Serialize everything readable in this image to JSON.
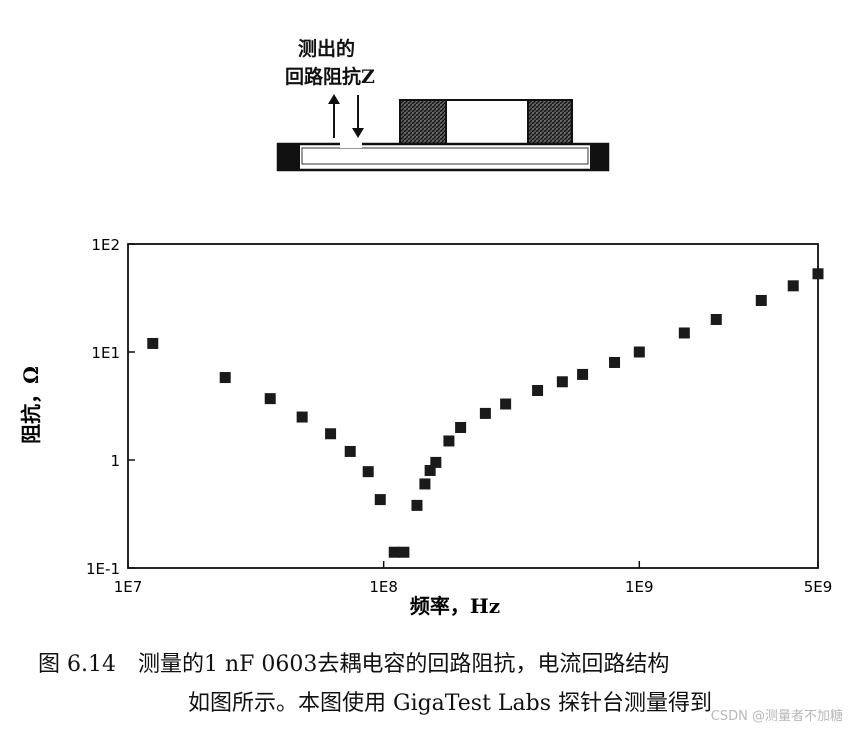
{
  "diagram": {
    "label_line1": "测出的",
    "label_line2": "回路阻抗Z"
  },
  "chart_data": {
    "type": "scatter",
    "title": "",
    "xlabel": "频率，Hz",
    "ylabel": "阻抗，Ω",
    "x_scale": "log",
    "y_scale": "log",
    "xlim": [
      10000000.0,
      5000000000.0
    ],
    "ylim": [
      0.1,
      100
    ],
    "x_ticks": [
      {
        "value": 10000000.0,
        "label": "1E7"
      },
      {
        "value": 100000000.0,
        "label": "1E8"
      },
      {
        "value": 1000000000.0,
        "label": "1E9"
      },
      {
        "value": 5000000000.0,
        "label": "5E9"
      }
    ],
    "y_ticks": [
      {
        "value": 0.1,
        "label": "1E-1"
      },
      {
        "value": 1,
        "label": "1"
      },
      {
        "value": 10,
        "label": "1E1"
      },
      {
        "value": 100,
        "label": "1E2"
      }
    ],
    "grid": false,
    "series": [
      {
        "x": [
          12500000.0,
          24000000.0,
          36000000.0,
          48000000.0,
          62000000.0,
          74000000.0,
          87000000.0,
          97000000.0,
          110000000.0,
          120000000.0,
          135000000.0,
          145000000.0,
          152000000.0,
          160000000.0,
          180000000.0,
          200000000.0,
          250000000.0,
          300000000.0,
          400000000.0,
          500000000.0,
          600000000.0,
          800000000.0,
          1000000000.0,
          1500000000.0,
          2000000000.0,
          3000000000.0,
          4000000000.0,
          5000000000.0
        ],
        "y": [
          12,
          5.8,
          3.7,
          2.5,
          1.75,
          1.2,
          0.78,
          0.43,
          0.14,
          0.14,
          0.38,
          0.6,
          0.8,
          0.95,
          1.5,
          2.0,
          2.7,
          3.3,
          4.4,
          5.3,
          6.2,
          8.0,
          10.0,
          15,
          20,
          30,
          41,
          53
        ]
      }
    ]
  },
  "caption": {
    "line1": "图 6.14　测量的1 nF 0603去耦电容的回路阻抗，电流回路结构",
    "line2": "如图所示。本图使用 GigaTest Labs 探针台测量得到"
  },
  "watermark": "CSDN @测量者不加糖"
}
